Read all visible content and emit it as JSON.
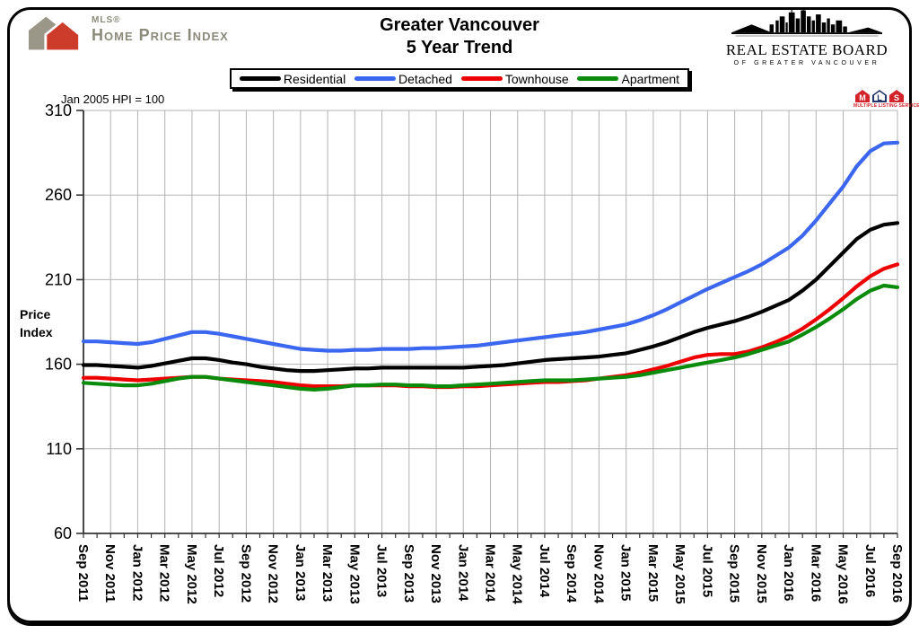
{
  "header": {
    "logo_hpi": {
      "brand": "MLS®",
      "name": "Home Price Index"
    },
    "title_line1": "Greater Vancouver",
    "title_line2": "5 Year Trend",
    "logo_rebgv": {
      "line1": "REAL ESTATE BOARD",
      "line2": "OF GREATER VANCOUVER"
    }
  },
  "chart": {
    "note": "Jan 2005 HPI = 100",
    "y_axis_title_line1": "Price",
    "y_axis_title_line2": "Index",
    "mls_badge": {
      "letters": [
        "M",
        "L",
        "S"
      ],
      "caption": "MULTIPLE LISTING SERVICE®"
    }
  },
  "chart_data": {
    "type": "line",
    "title": "Greater Vancouver 5 Year Trend",
    "ylabel": "Price Index",
    "ylim": [
      60,
      310
    ],
    "yticks": [
      60,
      110,
      160,
      210,
      260,
      310
    ],
    "grid": true,
    "grid_color": "#b3b3b3",
    "axis_color": "#333333",
    "legend_position": "top",
    "x_unit": "monthly, Sep 2011 to Sep 2016, tick labels every 2 months",
    "x_tick_labels": [
      "Sep 2011",
      "Nov 2011",
      "Jan 2012",
      "Mar 2012",
      "May 2012",
      "Jul 2012",
      "Sep 2012",
      "Nov 2012",
      "Jan 2013",
      "Mar 2013",
      "May 2013",
      "Jul 2013",
      "Sep 2013",
      "Nov 2013",
      "Jan 2014",
      "Mar 2014",
      "May 2014",
      "Jul 2014",
      "Sep 2014",
      "Nov 2014",
      "Jan 2015",
      "Mar 2015",
      "May 2015",
      "Jul 2015",
      "Sep 2015",
      "Nov 2015",
      "Jan 2016",
      "Mar 2016",
      "May 2016",
      "Jul 2016",
      "Sep 2016"
    ],
    "series": [
      {
        "name": "Residential",
        "color": "#000000",
        "values": [
          159.5,
          159.5,
          159,
          158.5,
          158,
          159,
          160.5,
          162,
          163.5,
          163.5,
          162.5,
          161,
          160,
          158.5,
          157.5,
          156.5,
          156,
          156,
          156.5,
          157,
          157.5,
          157.5,
          158,
          158,
          158,
          158,
          158,
          158,
          158,
          158.5,
          159,
          159.5,
          160.5,
          161.5,
          162.5,
          163,
          163.5,
          164,
          164.5,
          165.5,
          166.5,
          168.5,
          170.5,
          173,
          176,
          179,
          181.5,
          183.5,
          185.5,
          188,
          191,
          194.5,
          198,
          203.5,
          210,
          218,
          226,
          234,
          239.5,
          242.5,
          243.5
        ]
      },
      {
        "name": "Detached",
        "color": "#3A66F0",
        "values": [
          173.5,
          173.5,
          173,
          172.5,
          172,
          173,
          175,
          177,
          179,
          179,
          178,
          176.5,
          175,
          173.5,
          172,
          170.5,
          169,
          168.5,
          168,
          168,
          168.5,
          168.5,
          169,
          169,
          169,
          169.5,
          169.5,
          170,
          170.5,
          171,
          172,
          173,
          174,
          175,
          176,
          177,
          178,
          179,
          180.5,
          182,
          183.5,
          186,
          189,
          192.5,
          196.5,
          200.5,
          204.5,
          208,
          211.5,
          215,
          219,
          224,
          229,
          236,
          245,
          255,
          265,
          277,
          286,
          290.5,
          291
        ]
      },
      {
        "name": "Townhouse",
        "color": "#EE0000",
        "values": [
          152,
          152,
          151.5,
          151,
          150.5,
          151,
          151.5,
          152,
          152.5,
          152.5,
          151.5,
          151,
          150.5,
          150,
          149.5,
          148.5,
          147.5,
          147,
          147,
          147,
          147.5,
          147.5,
          147.5,
          147.5,
          147,
          147,
          146.5,
          146.5,
          147,
          147,
          147.5,
          148,
          148.5,
          149,
          149.5,
          149.5,
          150,
          150.5,
          151.5,
          152.5,
          153.5,
          155,
          157,
          159,
          161.5,
          164,
          165.5,
          166,
          166,
          167.5,
          170,
          173,
          176.5,
          181,
          186.5,
          192.5,
          199,
          206,
          212,
          216.5,
          219
        ]
      },
      {
        "name": "Apartment",
        "color": "#0B8B0B",
        "values": [
          149,
          148.5,
          148,
          147.5,
          147.5,
          148.5,
          150,
          151.5,
          152.5,
          152.5,
          151.5,
          150.5,
          149.5,
          148.5,
          147.5,
          146.5,
          145.5,
          145,
          145.5,
          146.5,
          147.5,
          147.5,
          148,
          148,
          147.5,
          147.5,
          147,
          147,
          147.5,
          148,
          148.5,
          149,
          149.5,
          150,
          150.5,
          150.5,
          150.5,
          151,
          151.5,
          152,
          152.5,
          153.5,
          155,
          156.5,
          158,
          159.5,
          161,
          162.5,
          164,
          166,
          168.5,
          171,
          173.5,
          177.5,
          182,
          187,
          192.5,
          198.5,
          203.5,
          206.5,
          205.5
        ]
      }
    ]
  }
}
